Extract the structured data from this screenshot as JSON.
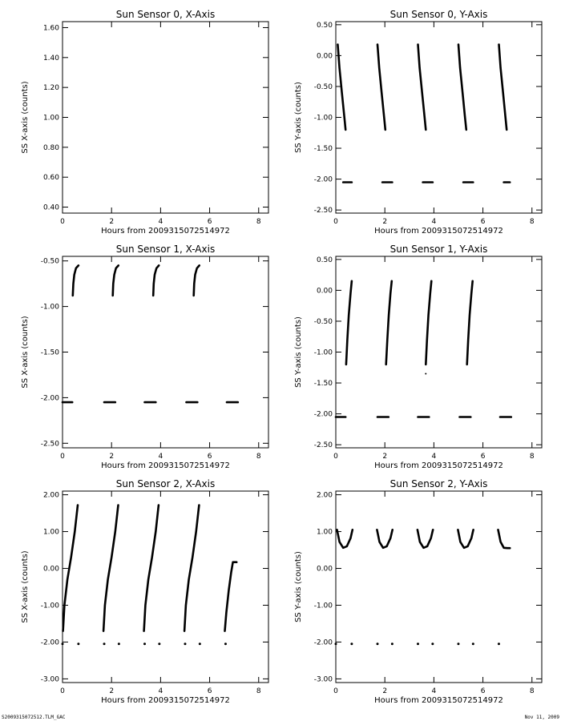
{
  "footer": {
    "left": "S2009315072512.TLM_GAC",
    "right": "Nov 11, 2009"
  },
  "chart_data": [
    {
      "type": "scatter",
      "title": "Sun Sensor 0, X-Axis",
      "xlabel": "Hours from 2009315072514972",
      "ylabel": "SS X-axis (counts)",
      "xlim": [
        0,
        8.4
      ],
      "ylim": [
        0.36,
        1.64
      ],
      "xticks": [
        "0",
        "2",
        "4",
        "6",
        "8"
      ],
      "yticks": [
        "0.40",
        "0.60",
        "0.80",
        "1.00",
        "1.20",
        "1.40",
        "1.60"
      ],
      "series": []
    },
    {
      "type": "scatter",
      "title": "Sun Sensor 0, Y-Axis",
      "xlabel": "Hours from 2009315072514972",
      "ylabel": "SS Y-axis (counts)",
      "xlim": [
        0,
        8.4
      ],
      "ylim": [
        -2.55,
        0.55
      ],
      "xticks": [
        "0",
        "2",
        "4",
        "6",
        "8"
      ],
      "yticks": [
        "-2.50",
        "-2.00",
        "-1.50",
        "-1.00",
        "-0.50",
        "0.00",
        "0.50"
      ],
      "series": [
        {
          "x": [
            0.08,
            0.15,
            0.25,
            0.35,
            0.4
          ],
          "y": [
            0.18,
            -0.2,
            -0.6,
            -1.0,
            -1.2
          ]
        },
        {
          "x": [
            1.7,
            1.77,
            1.87,
            1.97,
            2.02
          ],
          "y": [
            0.18,
            -0.2,
            -0.6,
            -1.0,
            -1.2
          ]
        },
        {
          "x": [
            3.35,
            3.42,
            3.52,
            3.62,
            3.67
          ],
          "y": [
            0.18,
            -0.2,
            -0.6,
            -1.0,
            -1.2
          ]
        },
        {
          "x": [
            5.0,
            5.07,
            5.17,
            5.27,
            5.32
          ],
          "y": [
            0.18,
            -0.2,
            -0.6,
            -1.0,
            -1.2
          ]
        },
        {
          "x": [
            6.65,
            6.72,
            6.82,
            6.92,
            6.97
          ],
          "y": [
            0.18,
            -0.2,
            -0.6,
            -1.0,
            -1.2
          ]
        },
        {
          "x": [
            0.3,
            0.65
          ],
          "y": [
            -2.05,
            -2.05
          ]
        },
        {
          "x": [
            1.9,
            2.3
          ],
          "y": [
            -2.05,
            -2.05
          ]
        },
        {
          "x": [
            3.55,
            3.95
          ],
          "y": [
            -2.05,
            -2.05
          ]
        },
        {
          "x": [
            5.2,
            5.6
          ],
          "y": [
            -2.05,
            -2.05
          ]
        },
        {
          "x": [
            6.85,
            7.1
          ],
          "y": [
            -2.05,
            -2.05
          ]
        }
      ]
    },
    {
      "type": "scatter",
      "title": "Sun Sensor 1, X-Axis",
      "xlabel": "Hours from 2009315072514972",
      "ylabel": "SS X-axis (counts)",
      "xlim": [
        0,
        8.4
      ],
      "ylim": [
        -2.55,
        -0.45
      ],
      "xticks": [
        "0",
        "2",
        "4",
        "6",
        "8"
      ],
      "yticks": [
        "-2.50",
        "-2.00",
        "-1.50",
        "-1.00",
        "-0.50"
      ],
      "series": [
        {
          "x": [
            0.42,
            0.44,
            0.48,
            0.55,
            0.65
          ],
          "y": [
            -0.88,
            -0.75,
            -0.65,
            -0.58,
            -0.55
          ]
        },
        {
          "x": [
            2.05,
            2.07,
            2.11,
            2.18,
            2.28
          ],
          "y": [
            -0.88,
            -0.75,
            -0.65,
            -0.58,
            -0.55
          ]
        },
        {
          "x": [
            3.7,
            3.72,
            3.76,
            3.83,
            3.93
          ],
          "y": [
            -0.88,
            -0.75,
            -0.65,
            -0.58,
            -0.55
          ]
        },
        {
          "x": [
            5.35,
            5.37,
            5.41,
            5.48,
            5.58
          ],
          "y": [
            -0.88,
            -0.75,
            -0.65,
            -0.58,
            -0.55
          ]
        },
        {
          "x": [
            0.0,
            0.4
          ],
          "y": [
            -2.05,
            -2.05
          ]
        },
        {
          "x": [
            1.7,
            2.15
          ],
          "y": [
            -2.05,
            -2.05
          ]
        },
        {
          "x": [
            3.35,
            3.8
          ],
          "y": [
            -2.05,
            -2.05
          ]
        },
        {
          "x": [
            5.05,
            5.5
          ],
          "y": [
            -2.05,
            -2.05
          ]
        },
        {
          "x": [
            6.7,
            7.15
          ],
          "y": [
            -2.05,
            -2.05
          ]
        }
      ]
    },
    {
      "type": "scatter",
      "title": "Sun Sensor 1, Y-Axis",
      "xlabel": "Hours from 2009315072514972",
      "ylabel": "SS Y-axis (counts)",
      "xlim": [
        0,
        8.4
      ],
      "ylim": [
        -2.55,
        0.55
      ],
      "xticks": [
        "0",
        "2",
        "4",
        "6",
        "8"
      ],
      "yticks": [
        "-2.50",
        "-2.00",
        "-1.50",
        "-1.00",
        "-0.50",
        "0.00",
        "0.50"
      ],
      "series": [
        {
          "x": [
            0.42,
            0.47,
            0.53,
            0.6,
            0.65
          ],
          "y": [
            -1.2,
            -0.8,
            -0.4,
            -0.05,
            0.15
          ]
        },
        {
          "x": [
            2.05,
            2.1,
            2.16,
            2.23,
            2.28
          ],
          "y": [
            -1.2,
            -0.8,
            -0.4,
            -0.05,
            0.15
          ]
        },
        {
          "x": [
            3.67,
            3.72,
            3.78,
            3.85,
            3.9
          ],
          "y": [
            -1.2,
            -0.8,
            -0.4,
            -0.05,
            0.15
          ]
        },
        {
          "x": [
            5.35,
            5.4,
            5.46,
            5.53,
            5.58
          ],
          "y": [
            -1.2,
            -0.8,
            -0.4,
            -0.05,
            0.15
          ]
        },
        {
          "x": [
            3.67
          ],
          "y": [
            -1.35
          ]
        },
        {
          "x": [
            0.0,
            0.4
          ],
          "y": [
            -2.05,
            -2.05
          ]
        },
        {
          "x": [
            1.7,
            2.15
          ],
          "y": [
            -2.05,
            -2.05
          ]
        },
        {
          "x": [
            3.35,
            3.8
          ],
          "y": [
            -2.05,
            -2.05
          ]
        },
        {
          "x": [
            5.05,
            5.5
          ],
          "y": [
            -2.05,
            -2.05
          ]
        },
        {
          "x": [
            6.7,
            7.15
          ],
          "y": [
            -2.05,
            -2.05
          ]
        }
      ]
    },
    {
      "type": "scatter",
      "title": "Sun Sensor 2, X-Axis",
      "xlabel": "Hours from 2009315072514972",
      "ylabel": "SS X-axis (counts)",
      "xlim": [
        0,
        8.4
      ],
      "ylim": [
        -3.1,
        2.1
      ],
      "xticks": [
        "0",
        "2",
        "4",
        "6",
        "8"
      ],
      "yticks": [
        "-3.00",
        "-2.00",
        "-1.00",
        "0.00",
        "1.00",
        "2.00"
      ],
      "series": [
        {
          "x": [
            0.02,
            0.08,
            0.2,
            0.35,
            0.5,
            0.62
          ],
          "y": [
            -1.7,
            -1.0,
            -0.3,
            0.3,
            1.0,
            1.72
          ]
        },
        {
          "x": [
            1.67,
            1.73,
            1.85,
            2.0,
            2.15,
            2.27
          ],
          "y": [
            -1.7,
            -1.0,
            -0.3,
            0.3,
            1.0,
            1.72
          ]
        },
        {
          "x": [
            3.32,
            3.38,
            3.5,
            3.65,
            3.8,
            3.92
          ],
          "y": [
            -1.7,
            -1.0,
            -0.3,
            0.3,
            1.0,
            1.72
          ]
        },
        {
          "x": [
            4.97,
            5.03,
            5.15,
            5.3,
            5.45,
            5.57
          ],
          "y": [
            -1.7,
            -1.0,
            -0.3,
            0.3,
            1.0,
            1.72
          ]
        },
        {
          "x": [
            6.62,
            6.68,
            6.78,
            6.88,
            6.95,
            7.1
          ],
          "y": [
            -1.7,
            -1.2,
            -0.6,
            -0.1,
            0.17,
            0.17
          ]
        },
        {
          "x": [
            0.0,
            0.65,
            1.7,
            2.3,
            3.35,
            3.95,
            5.0,
            5.6,
            6.65
          ],
          "y": [
            -2.05,
            -2.05,
            -2.05,
            -2.05,
            -2.05,
            -2.05,
            -2.05,
            -2.05,
            -2.05
          ]
        }
      ]
    },
    {
      "type": "scatter",
      "title": "Sun Sensor 2, Y-Axis",
      "xlabel": "Hours from 2009315072514972",
      "ylabel": "SS Y-axis (counts)",
      "xlim": [
        0,
        8.4
      ],
      "ylim": [
        -3.1,
        2.1
      ],
      "xticks": [
        "0",
        "2",
        "4",
        "6",
        "8"
      ],
      "yticks": [
        "-3.00",
        "-2.00",
        "-1.00",
        "0.00",
        "1.00",
        "2.00"
      ],
      "series": [
        {
          "x": [
            0.05,
            0.15,
            0.3,
            0.45,
            0.6,
            0.68
          ],
          "y": [
            1.05,
            0.72,
            0.56,
            0.6,
            0.82,
            1.05
          ]
        },
        {
          "x": [
            1.68,
            1.78,
            1.93,
            2.08,
            2.23,
            2.31
          ],
          "y": [
            1.05,
            0.72,
            0.56,
            0.6,
            0.82,
            1.05
          ]
        },
        {
          "x": [
            3.33,
            3.43,
            3.58,
            3.73,
            3.88,
            3.96
          ],
          "y": [
            1.05,
            0.72,
            0.56,
            0.6,
            0.82,
            1.05
          ]
        },
        {
          "x": [
            4.98,
            5.08,
            5.23,
            5.38,
            5.53,
            5.61
          ],
          "y": [
            1.05,
            0.72,
            0.56,
            0.6,
            0.82,
            1.05
          ]
        },
        {
          "x": [
            6.62,
            6.72,
            6.85,
            7.0,
            7.1
          ],
          "y": [
            1.05,
            0.72,
            0.56,
            0.55,
            0.55
          ]
        },
        {
          "x": [
            0.0,
            0.65,
            1.7,
            2.3,
            3.35,
            3.95,
            5.0,
            5.6,
            6.65
          ],
          "y": [
            -2.05,
            -2.05,
            -2.05,
            -2.05,
            -2.05,
            -2.05,
            -2.05,
            -2.05,
            -2.05
          ]
        }
      ]
    }
  ]
}
